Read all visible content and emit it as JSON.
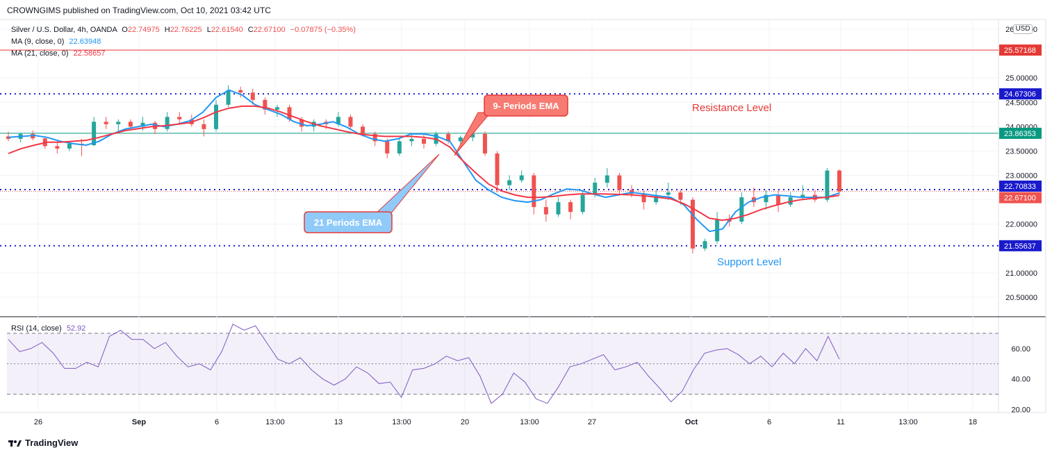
{
  "header": {
    "published": "CROWNGIMS published on TradingView.com, Oct 10, 2021 03:42 UTC",
    "usd_badge": "USD"
  },
  "legend": {
    "symbol": "Silver / U.S. Dollar, 4h, OANDA",
    "o_label": "O",
    "o_value": "22.74975",
    "h_label": "H",
    "h_value": "22.76225",
    "l_label": "L",
    "l_value": "22.61540",
    "c_label": "C",
    "c_value": "22.67100",
    "change": "−0.07875 (−0.35%)",
    "ma9_label": "MA (9, close, 0)",
    "ma9_value": "22.63948",
    "ma21_label": "MA (21, close, 0)",
    "ma21_value": "22.58657"
  },
  "annotations": {
    "ema9": "9- Periods EMA",
    "ema21": "21 Periods EMA",
    "resistance": "Resistance Level",
    "support": "Support Level"
  },
  "footer": {
    "brand": "TradingView"
  },
  "colors": {
    "up": "#26a69a",
    "down": "#ef5350",
    "ma9": "#2196f3",
    "ma21": "#f23645",
    "level": "#1a1acc",
    "rsi": "#7e57c2",
    "hline": "#089981",
    "redline": "#e53935"
  },
  "chart_data": [
    {
      "type": "candlestick",
      "title": "",
      "y_ticks": [
        "26.00000",
        "25.00000",
        "24.50000",
        "24.00000",
        "23.50000",
        "23.00000",
        "22.50000",
        "22.00000",
        "21.00000",
        "20.50000"
      ],
      "x_ticks": [
        "26",
        "Sep",
        "6",
        "13:00",
        "13",
        "13:00",
        "20",
        "13:00",
        "27",
        "Oct",
        "6",
        "11",
        "13:00",
        "18"
      ],
      "ylim": [
        20.1,
        26.2
      ],
      "price_labels": [
        {
          "value": 25.57168,
          "text": "25.57168",
          "color": "#e53935"
        },
        {
          "value": 24.67306,
          "text": "24.67306",
          "color": "#1a1acc"
        },
        {
          "value": 23.86353,
          "text": "23.86353",
          "color": "#089981"
        },
        {
          "value": 22.70833,
          "text": "22.70833",
          "color": "#1a1acc"
        },
        {
          "value": 22.671,
          "text": "22.67100",
          "color": "#ef5350"
        },
        {
          "value": 21.55637,
          "text": "21.55637",
          "color": "#1a1acc"
        }
      ],
      "levels": {
        "red_solid": 25.57168,
        "resistance": 24.67306,
        "horizontal": 23.86353,
        "current": 22.70833,
        "support": 21.55637
      },
      "series": [
        {
          "name": "MA (9, close, 0)",
          "color": "#2196f3",
          "values": [
            23.78,
            23.8,
            23.82,
            23.78,
            23.7,
            23.65,
            23.62,
            23.7,
            23.85,
            23.95,
            24.0,
            24.05,
            24.0,
            24.05,
            24.12,
            24.3,
            24.6,
            24.75,
            24.65,
            24.45,
            24.35,
            24.25,
            24.1,
            24.02,
            24.05,
            24.1,
            24.0,
            23.85,
            23.75,
            23.7,
            23.75,
            23.85,
            23.85,
            23.8,
            23.7,
            23.3,
            22.9,
            22.7,
            22.55,
            22.48,
            22.45,
            22.5,
            22.62,
            22.72,
            22.7,
            22.62,
            22.55,
            22.6,
            22.65,
            22.62,
            22.58,
            22.55,
            22.4,
            22.1,
            21.85,
            21.9,
            22.25,
            22.45,
            22.55,
            22.6,
            22.58,
            22.55,
            22.55,
            22.55,
            22.64
          ]
        },
        {
          "name": "MA (21, close, 0)",
          "color": "#f23645",
          "values": [
            23.45,
            23.55,
            23.62,
            23.68,
            23.68,
            23.7,
            23.72,
            23.78,
            23.85,
            23.92,
            23.96,
            24.0,
            24.02,
            24.05,
            24.08,
            24.18,
            24.3,
            24.38,
            24.42,
            24.42,
            24.38,
            24.3,
            24.2,
            24.1,
            24.02,
            23.96,
            23.9,
            23.85,
            23.82,
            23.8,
            23.8,
            23.8,
            23.78,
            23.74,
            23.58,
            23.3,
            23.05,
            22.82,
            22.68,
            22.6,
            22.55,
            22.55,
            22.57,
            22.6,
            22.62,
            22.62,
            22.62,
            22.61,
            22.6,
            22.58,
            22.55,
            22.52,
            22.42,
            22.28,
            22.12,
            22.08,
            22.12,
            22.2,
            22.3,
            22.38,
            22.45,
            22.5,
            22.53,
            22.55,
            22.59
          ]
        }
      ],
      "candles": [
        {
          "o": 23.8,
          "h": 23.9,
          "l": 23.7,
          "c": 23.75
        },
        {
          "o": 23.75,
          "h": 23.88,
          "l": 23.68,
          "c": 23.85
        },
        {
          "o": 23.85,
          "h": 23.92,
          "l": 23.72,
          "c": 23.76
        },
        {
          "o": 23.76,
          "h": 23.8,
          "l": 23.55,
          "c": 23.6
        },
        {
          "o": 23.6,
          "h": 23.68,
          "l": 23.45,
          "c": 23.55
        },
        {
          "o": 23.55,
          "h": 23.7,
          "l": 23.5,
          "c": 23.65
        },
        {
          "o": 23.65,
          "h": 23.75,
          "l": 23.4,
          "c": 23.62
        },
        {
          "o": 23.62,
          "h": 24.2,
          "l": 23.6,
          "c": 24.1
        },
        {
          "o": 24.1,
          "h": 24.2,
          "l": 23.95,
          "c": 24.05
        },
        {
          "o": 24.05,
          "h": 24.15,
          "l": 23.9,
          "c": 24.1
        },
        {
          "o": 24.1,
          "h": 24.15,
          "l": 23.95,
          "c": 24.0
        },
        {
          "o": 24.0,
          "h": 24.2,
          "l": 23.92,
          "c": 24.08
        },
        {
          "o": 24.08,
          "h": 24.12,
          "l": 23.85,
          "c": 23.95
        },
        {
          "o": 23.95,
          "h": 24.3,
          "l": 23.9,
          "c": 24.2
        },
        {
          "o": 24.2,
          "h": 24.3,
          "l": 24.05,
          "c": 24.15
        },
        {
          "o": 24.15,
          "h": 24.25,
          "l": 24.0,
          "c": 24.05
        },
        {
          "o": 24.05,
          "h": 24.15,
          "l": 23.8,
          "c": 23.95
        },
        {
          "o": 23.95,
          "h": 24.55,
          "l": 23.9,
          "c": 24.45
        },
        {
          "o": 24.45,
          "h": 24.85,
          "l": 24.4,
          "c": 24.75
        },
        {
          "o": 24.75,
          "h": 24.82,
          "l": 24.6,
          "c": 24.7
        },
        {
          "o": 24.7,
          "h": 24.78,
          "l": 24.45,
          "c": 24.55
        },
        {
          "o": 24.55,
          "h": 24.6,
          "l": 24.25,
          "c": 24.35
        },
        {
          "o": 24.35,
          "h": 24.45,
          "l": 24.2,
          "c": 24.4
        },
        {
          "o": 24.4,
          "h": 24.45,
          "l": 24.1,
          "c": 24.15
        },
        {
          "o": 24.15,
          "h": 24.2,
          "l": 23.9,
          "c": 24.0
        },
        {
          "o": 24.0,
          "h": 24.15,
          "l": 23.9,
          "c": 24.1
        },
        {
          "o": 24.1,
          "h": 24.15,
          "l": 23.95,
          "c": 24.05
        },
        {
          "o": 24.05,
          "h": 24.3,
          "l": 24.0,
          "c": 24.2
        },
        {
          "o": 24.2,
          "h": 24.25,
          "l": 23.95,
          "c": 24.0
        },
        {
          "o": 24.0,
          "h": 24.05,
          "l": 23.8,
          "c": 23.85
        },
        {
          "o": 23.85,
          "h": 23.9,
          "l": 23.6,
          "c": 23.7
        },
        {
          "o": 23.7,
          "h": 23.75,
          "l": 23.35,
          "c": 23.45
        },
        {
          "o": 23.45,
          "h": 23.75,
          "l": 23.4,
          "c": 23.7
        },
        {
          "o": 23.7,
          "h": 23.85,
          "l": 23.6,
          "c": 23.75
        },
        {
          "o": 23.75,
          "h": 23.85,
          "l": 23.55,
          "c": 23.65
        },
        {
          "o": 23.65,
          "h": 23.9,
          "l": 23.6,
          "c": 23.85
        },
        {
          "o": 23.85,
          "h": 23.9,
          "l": 23.65,
          "c": 23.7
        },
        {
          "o": 23.7,
          "h": 23.82,
          "l": 23.62,
          "c": 23.78
        },
        {
          "o": 23.78,
          "h": 23.92,
          "l": 23.7,
          "c": 23.85
        },
        {
          "o": 23.85,
          "h": 23.9,
          "l": 23.4,
          "c": 23.45
        },
        {
          "o": 23.45,
          "h": 23.5,
          "l": 22.65,
          "c": 22.8
        },
        {
          "o": 22.8,
          "h": 23.0,
          "l": 22.7,
          "c": 22.9
        },
        {
          "o": 22.9,
          "h": 23.1,
          "l": 22.85,
          "c": 23.0
        },
        {
          "o": 23.0,
          "h": 23.05,
          "l": 22.2,
          "c": 22.35
        },
        {
          "o": 22.35,
          "h": 22.5,
          "l": 22.05,
          "c": 22.2
        },
        {
          "o": 22.2,
          "h": 22.55,
          "l": 22.15,
          "c": 22.45
        },
        {
          "o": 22.45,
          "h": 22.5,
          "l": 22.1,
          "c": 22.25
        },
        {
          "o": 22.25,
          "h": 22.7,
          "l": 22.2,
          "c": 22.6
        },
        {
          "o": 22.6,
          "h": 22.95,
          "l": 22.55,
          "c": 22.85
        },
        {
          "o": 22.85,
          "h": 23.15,
          "l": 22.75,
          "c": 23.0
        },
        {
          "o": 23.0,
          "h": 23.05,
          "l": 22.6,
          "c": 22.7
        },
        {
          "o": 22.7,
          "h": 22.8,
          "l": 22.55,
          "c": 22.62
        },
        {
          "o": 22.62,
          "h": 22.7,
          "l": 22.3,
          "c": 22.45
        },
        {
          "o": 22.45,
          "h": 22.7,
          "l": 22.4,
          "c": 22.6
        },
        {
          "o": 22.6,
          "h": 22.85,
          "l": 22.5,
          "c": 22.65
        },
        {
          "o": 22.65,
          "h": 22.7,
          "l": 22.4,
          "c": 22.5
        },
        {
          "o": 22.5,
          "h": 22.55,
          "l": 21.4,
          "c": 21.5
        },
        {
          "o": 21.5,
          "h": 21.7,
          "l": 21.45,
          "c": 21.65
        },
        {
          "o": 21.65,
          "h": 22.25,
          "l": 21.6,
          "c": 22.1
        },
        {
          "o": 22.1,
          "h": 22.2,
          "l": 21.95,
          "c": 22.05
        },
        {
          "o": 22.05,
          "h": 22.65,
          "l": 22.0,
          "c": 22.55
        },
        {
          "o": 22.55,
          "h": 22.75,
          "l": 22.35,
          "c": 22.45
        },
        {
          "o": 22.45,
          "h": 22.7,
          "l": 22.3,
          "c": 22.6
        },
        {
          "o": 22.6,
          "h": 22.7,
          "l": 22.25,
          "c": 22.4
        },
        {
          "o": 22.4,
          "h": 22.65,
          "l": 22.35,
          "c": 22.55
        },
        {
          "o": 22.55,
          "h": 22.8,
          "l": 22.5,
          "c": 22.6
        },
        {
          "o": 22.6,
          "h": 22.7,
          "l": 22.45,
          "c": 22.5
        },
        {
          "o": 22.5,
          "h": 23.15,
          "l": 22.45,
          "c": 23.1
        },
        {
          "o": 23.1,
          "h": 23.12,
          "l": 22.6,
          "c": 22.67
        }
      ]
    },
    {
      "type": "line",
      "title": "",
      "name": "RSI (14, close)",
      "value_text": "52.92",
      "y_ticks": [
        "60.00",
        "40.00",
        "20.00"
      ],
      "ylim": [
        18,
        80
      ],
      "bands": [
        30,
        70
      ],
      "mid": 50,
      "values": [
        66,
        58,
        60,
        64,
        57,
        47,
        47,
        51,
        48,
        68,
        72,
        66,
        66,
        60,
        64,
        55,
        48,
        50,
        46,
        58,
        76,
        72,
        75,
        64,
        53,
        50,
        54,
        46,
        40,
        36,
        40,
        48,
        44,
        37,
        38,
        28,
        46,
        47,
        50,
        55,
        52,
        54,
        42,
        24,
        30,
        44,
        38,
        27,
        24,
        35,
        48,
        50,
        53,
        56,
        46,
        48,
        51,
        42,
        34,
        25,
        32,
        46,
        57,
        59,
        60,
        56,
        50,
        55,
        48,
        57,
        50,
        60,
        52,
        68,
        53
      ]
    }
  ]
}
